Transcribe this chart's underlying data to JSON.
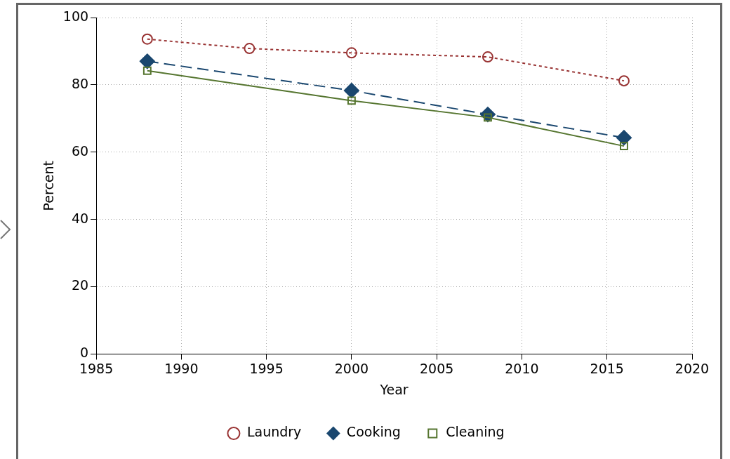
{
  "chart_data": {
    "type": "line",
    "xlabel": "Year",
    "ylabel": "Percent",
    "x": [
      1988,
      1994,
      2000,
      2008,
      2016
    ],
    "xlim": [
      1985,
      2020
    ],
    "xticks": [
      1985,
      1990,
      1995,
      2000,
      2005,
      2010,
      2015,
      2020
    ],
    "ylim": [
      0,
      100
    ],
    "yticks": [
      0,
      20,
      40,
      60,
      80,
      100
    ],
    "grid": true,
    "legend": "bottom",
    "series": [
      {
        "name": "Laundry",
        "color": "#993333",
        "marker": "circle",
        "line_style": "dotted",
        "values": [
          93.6,
          90.8,
          89.5,
          88.3,
          81.2
        ]
      },
      {
        "name": "Cooking",
        "color": "#1a476f",
        "marker": "diamond",
        "line_style": "dashed",
        "values": [
          87.0,
          null,
          78.3,
          71.2,
          64.3
        ]
      },
      {
        "name": "Cleaning",
        "color": "#55752f",
        "marker": "square",
        "line_style": "solid",
        "values": [
          84.2,
          null,
          75.3,
          70.3,
          61.8
        ]
      }
    ]
  }
}
